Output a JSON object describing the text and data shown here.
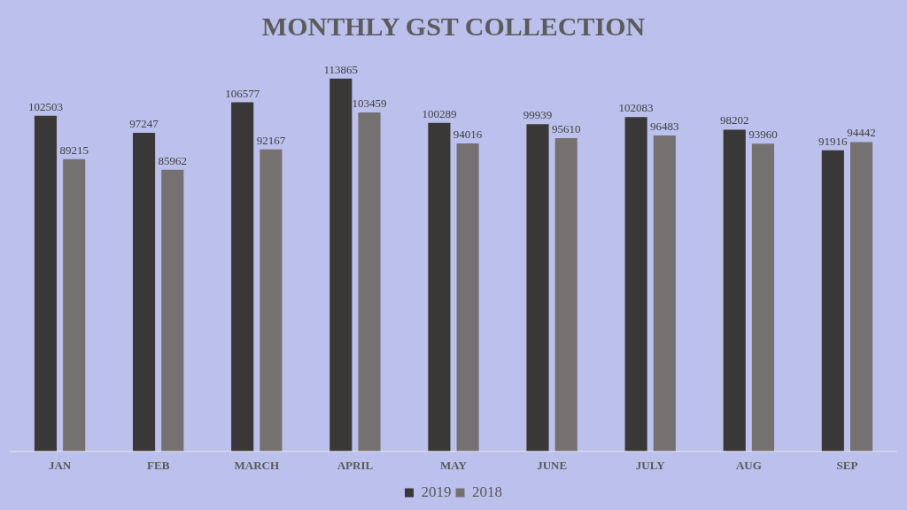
{
  "chart_data": {
    "type": "bar",
    "title": "MONTHLY GST COLLECTION",
    "categories": [
      "JAN",
      "FEB",
      "MARCH",
      "APRIL",
      "MAY",
      "JUNE",
      "JULY",
      "AUG",
      "SEP"
    ],
    "series": [
      {
        "name": "2019",
        "color": "#3a3836",
        "values": [
          102503,
          97247,
          106577,
          113865,
          100289,
          99939,
          102083,
          98202,
          91916
        ]
      },
      {
        "name": "2018",
        "color": "#767171",
        "values": [
          89215,
          85962,
          92167,
          103459,
          94016,
          95610,
          96483,
          93960,
          94442
        ]
      }
    ],
    "tick_labels": "x",
    "data_labels": true,
    "legend": "bottom"
  }
}
